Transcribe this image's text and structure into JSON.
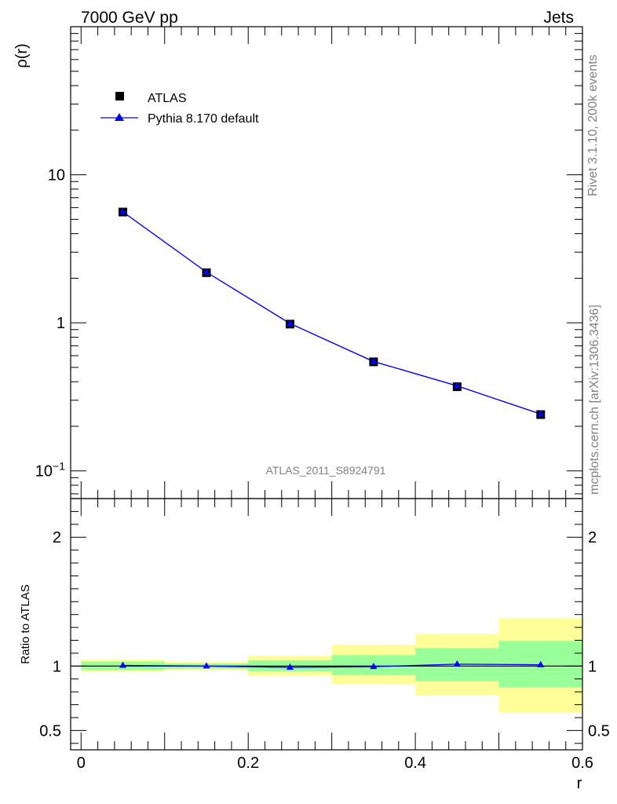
{
  "header": {
    "left": "7000 GeV pp",
    "right": "Jets"
  },
  "side": {
    "top": "Rivet 3.1.10,  200k events",
    "bottom": "mcplots.cern.ch [arXiv:1306.3436]"
  },
  "watermark": "ATLAS_2011_S8924791",
  "chart_data": [
    {
      "type": "scatter",
      "ylabel": "ρ(r)",
      "yscale": "log",
      "xlim": [
        -0.0125,
        0.6
      ],
      "ylim": [
        0.065,
        100
      ],
      "y_ticks": [
        {
          "value": 0.1,
          "base": "10",
          "exp": "−1"
        },
        {
          "value": 1,
          "label": "1"
        },
        {
          "value": 10,
          "label": "10"
        }
      ],
      "legend": {
        "placement": "top-left",
        "entries": [
          {
            "label": "ATLAS",
            "color": "#000000",
            "marker": "square"
          },
          {
            "label": "Pythia 8.170 default",
            "color": "#0000ff",
            "marker": "triangle"
          }
        ]
      },
      "series": [
        {
          "name": "ATLAS",
          "color": "#000000",
          "x": [
            0.05,
            0.15,
            0.25,
            0.35,
            0.45,
            0.55
          ],
          "y": [
            5.6,
            2.18,
            0.98,
            0.545,
            0.37,
            0.24
          ]
        },
        {
          "name": "Pythia 8.170 default",
          "color": "#0000ff",
          "x": [
            0.05,
            0.15,
            0.25,
            0.35,
            0.45,
            0.55
          ],
          "y": [
            5.62,
            2.2,
            0.99,
            0.548,
            0.375,
            0.242
          ]
        }
      ]
    },
    {
      "type": "line",
      "ylabel": "Ratio to ATLAS",
      "xlabel": "r",
      "xlim": [
        -0.0125,
        0.6
      ],
      "ylim": [
        0.35,
        2.3
      ],
      "x_ticks": [
        {
          "value": 0,
          "label": "0"
        },
        {
          "value": 0.2,
          "label": "0.2"
        },
        {
          "value": 0.4,
          "label": "0.4"
        },
        {
          "value": 0.6,
          "label": "0.6"
        }
      ],
      "y_ticks": [
        {
          "value": 0.5,
          "label": "0.5"
        },
        {
          "value": 1,
          "label": "1"
        },
        {
          "value": 2,
          "label": "2"
        }
      ],
      "bands": [
        {
          "x0": 0.0,
          "x1": 0.1,
          "yellow": [
            0.955,
            1.05
          ],
          "green": [
            0.97,
            1.035
          ]
        },
        {
          "x0": 0.1,
          "x1": 0.2,
          "yellow": [
            0.97,
            1.035
          ],
          "green": [
            0.98,
            1.02
          ]
        },
        {
          "x0": 0.2,
          "x1": 0.3,
          "yellow": [
            0.925,
            1.08
          ],
          "green": [
            0.96,
            1.045
          ]
        },
        {
          "x0": 0.3,
          "x1": 0.4,
          "yellow": [
            0.86,
            1.165
          ],
          "green": [
            0.93,
            1.085
          ]
        },
        {
          "x0": 0.4,
          "x1": 0.5,
          "yellow": [
            0.77,
            1.25
          ],
          "green": [
            0.885,
            1.14
          ]
        },
        {
          "x0": 0.5,
          "x1": 0.6,
          "yellow": [
            0.64,
            1.37
          ],
          "green": [
            0.835,
            1.195
          ]
        }
      ],
      "band_colors": {
        "yellow": "#ffff99",
        "green": "#99ff99"
      },
      "series": [
        {
          "name": "Pythia 8.170 default",
          "color": "#0000ff",
          "x": [
            0.05,
            0.15,
            0.25,
            0.35,
            0.45,
            0.55
          ],
          "y": [
            1.005,
            1.0,
            0.99,
            0.995,
            1.015,
            1.01
          ]
        }
      ]
    }
  ]
}
